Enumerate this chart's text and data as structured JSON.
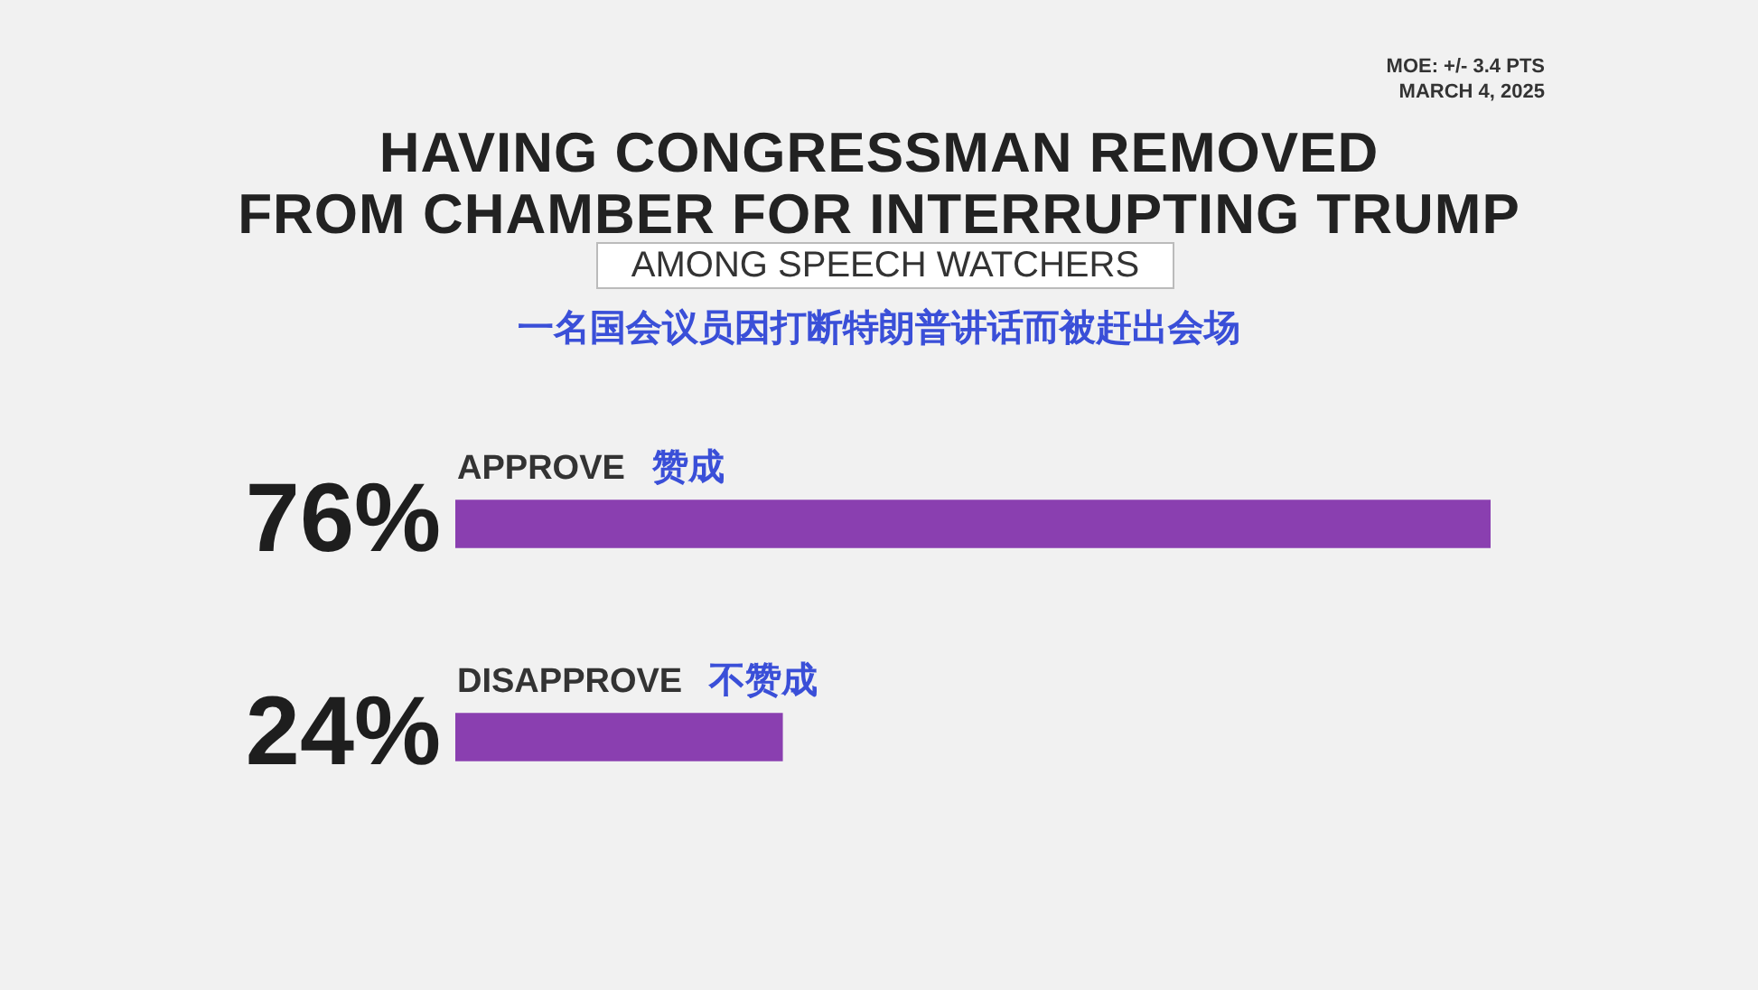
{
  "chart_data": {
    "type": "bar",
    "orientation": "horizontal",
    "title": "HAVING CONGRESSMAN REMOVED\nFROM CHAMBER FOR INTERRUPTING TRUMP",
    "subtitle": "AMONG SPEECH WATCHERS",
    "annotations": [
      "一名国会议员因打断特朗普讲话而被赶出会场",
      "MOE: +/- 3.4 PTS",
      "MARCH 4, 2025"
    ],
    "categories": [
      "APPROVE 赞成",
      "DISAPPROVE 不赞成"
    ],
    "values": [
      76,
      24
    ],
    "value_labels": [
      "76%",
      "24%"
    ],
    "color": "#8a3fb0"
  }
}
